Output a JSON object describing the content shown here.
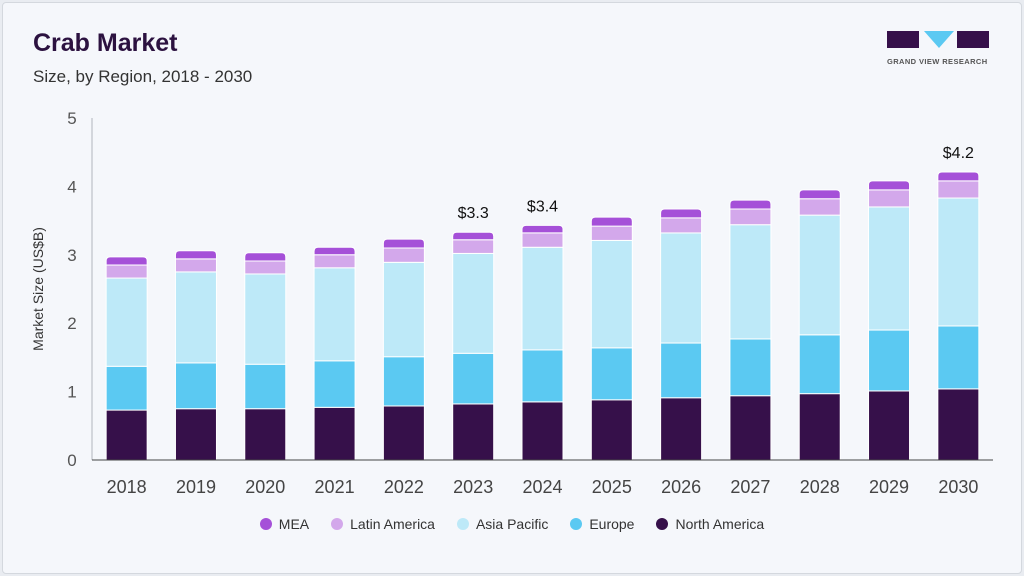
{
  "header": {
    "title": "Crab Market",
    "subtitle": "Size, by Region, 2018 - 2030",
    "logo_text": "GRAND VIEW RESEARCH"
  },
  "chart_data": {
    "type": "bar",
    "stacked": true,
    "title": "Crab Market",
    "subtitle": "Size, by Region, 2018 - 2030",
    "xlabel": "",
    "ylabel": "Market Size (US$B)",
    "ylim": [
      0,
      5
    ],
    "yticks": [
      "0",
      "1",
      "2",
      "3",
      "4",
      "5"
    ],
    "categories": [
      "2018",
      "2019",
      "2020",
      "2021",
      "2022",
      "2023",
      "2024",
      "2025",
      "2026",
      "2027",
      "2028",
      "2029",
      "2030"
    ],
    "series": [
      {
        "name": "North America",
        "color": "#36104a",
        "values": [
          0.73,
          0.75,
          0.75,
          0.77,
          0.79,
          0.82,
          0.85,
          0.88,
          0.91,
          0.94,
          0.97,
          1.01,
          1.04
        ]
      },
      {
        "name": "Europe",
        "color": "#5bc9f2",
        "values": [
          0.64,
          0.67,
          0.65,
          0.68,
          0.72,
          0.74,
          0.76,
          0.76,
          0.8,
          0.83,
          0.86,
          0.89,
          0.92
        ]
      },
      {
        "name": "Asia Pacific",
        "color": "#bde9f8",
        "values": [
          1.29,
          1.33,
          1.32,
          1.36,
          1.38,
          1.46,
          1.5,
          1.57,
          1.61,
          1.67,
          1.75,
          1.8,
          1.87
        ]
      },
      {
        "name": "Latin America",
        "color": "#d3a8eb",
        "values": [
          0.19,
          0.19,
          0.19,
          0.19,
          0.21,
          0.2,
          0.21,
          0.21,
          0.22,
          0.23,
          0.24,
          0.25,
          0.25
        ]
      },
      {
        "name": "MEA",
        "color": "#a550d8",
        "values": [
          0.12,
          0.12,
          0.12,
          0.11,
          0.13,
          0.11,
          0.11,
          0.13,
          0.13,
          0.13,
          0.13,
          0.13,
          0.13
        ]
      }
    ],
    "annotations": [
      {
        "category": "2023",
        "text": "$3.3"
      },
      {
        "category": "2024",
        "text": "$3.4"
      },
      {
        "category": "2030",
        "text": "$4.2"
      }
    ],
    "legend": {
      "placement": "bottom",
      "order": [
        "MEA",
        "Latin America",
        "Asia Pacific",
        "Europe",
        "North America"
      ]
    },
    "grid": false
  }
}
